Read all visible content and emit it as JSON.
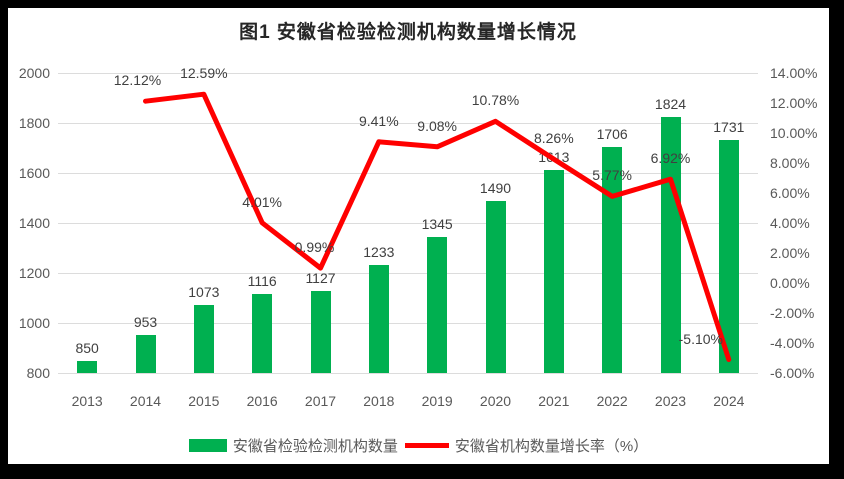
{
  "title": "图1 安徽省检验检测机构数量增长情况",
  "colors": {
    "bar": "#00B050",
    "line": "#FF0000",
    "grid": "#DCDCDC",
    "axis_text": "#595959",
    "data_label_text": "#404040",
    "title_text": "#262626",
    "frame": "#000000",
    "background": "#FFFFFF"
  },
  "chart_data": {
    "type": "combo-bar-line",
    "title": "图1 安徽省检验检测机构数量增长情况",
    "categories": [
      "2013",
      "2014",
      "2015",
      "2016",
      "2017",
      "2018",
      "2019",
      "2020",
      "2021",
      "2022",
      "2023",
      "2024"
    ],
    "series": [
      {
        "name": "安徽省检验检测机构数量",
        "type": "bar",
        "axis": "left",
        "values": [
          850,
          953,
          1073,
          1116,
          1127,
          1233,
          1345,
          1490,
          1613,
          1706,
          1824,
          1731
        ],
        "labels": [
          "850",
          "953",
          "1073",
          "1116",
          "1127",
          "1233",
          "1345",
          "1490",
          "1613",
          "1706",
          "1824",
          "1731"
        ]
      },
      {
        "name": "安徽省机构数量增长率（%）",
        "type": "line",
        "axis": "right",
        "values": [
          null,
          12.12,
          12.59,
          4.01,
          0.99,
          9.41,
          9.08,
          10.78,
          8.26,
          5.77,
          6.92,
          -5.1
        ],
        "labels": [
          null,
          "12.12%",
          "12.59%",
          "4.01%",
          "0.99%",
          "9.41%",
          "9.08%",
          "10.78%",
          "8.26%",
          "5.77%",
          "6.92%",
          "-5.10%"
        ]
      }
    ],
    "left_axis": {
      "min": 800,
      "max": 2000,
      "step": 200,
      "ticks": [
        "800",
        "1000",
        "1200",
        "1400",
        "1600",
        "1800",
        "2000"
      ]
    },
    "right_axis": {
      "min": -6,
      "max": 14,
      "step": 2,
      "ticks": [
        "-6.00%",
        "-4.00%",
        "-2.00%",
        "0.00%",
        "2.00%",
        "4.00%",
        "6.00%",
        "8.00%",
        "10.00%",
        "12.00%",
        "14.00%"
      ]
    },
    "grid": true,
    "legend_position": "bottom"
  },
  "legend": {
    "items": [
      {
        "label": "安徽省检验检测机构数量",
        "swatch": "bar"
      },
      {
        "label": "安徽省机构数量增长率（%）",
        "swatch": "line"
      }
    ]
  }
}
